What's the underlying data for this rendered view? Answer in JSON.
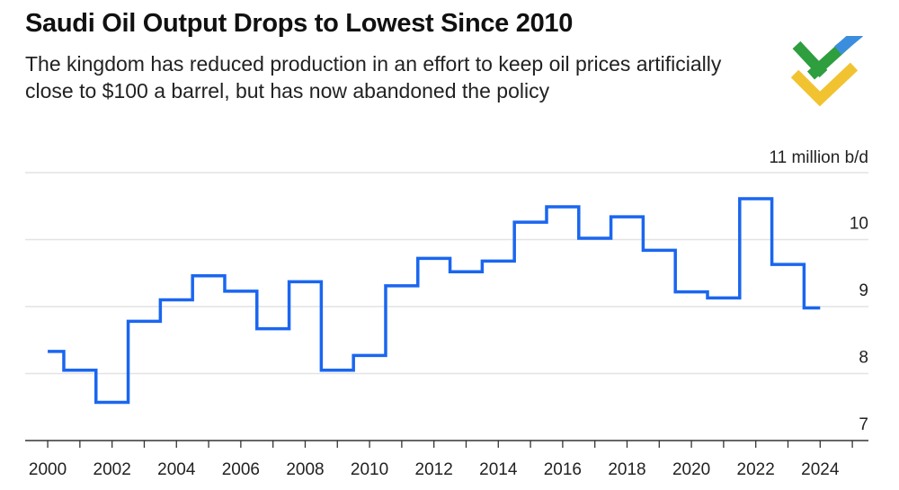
{
  "header": {
    "title": "Saudi Oil Output Drops to Lowest Since 2010",
    "subtitle_line1": "The kingdom has reduced production in an effort to keep oil prices artificially",
    "subtitle_line2": "close to $100 a barrel, but has now abandoned the policy"
  },
  "logo": {
    "icon": "checkmark-logo-icon",
    "colors": [
      "#2e9e3e",
      "#3b8ede",
      "#f2c331"
    ]
  },
  "chart_data": {
    "type": "line",
    "step": true,
    "title": "Saudi Oil Output Drops to Lowest Since 2010",
    "unit_label": "11 million b/d",
    "xlabel": "",
    "ylabel": "",
    "xlim": [
      1999.3,
      2025.5
    ],
    "ylim": [
      7,
      11
    ],
    "yticks": [
      7,
      8,
      9,
      10
    ],
    "xticks": [
      2000,
      2002,
      2004,
      2006,
      2008,
      2010,
      2012,
      2014,
      2016,
      2018,
      2020,
      2022,
      2024
    ],
    "grid": true,
    "line_color": "#1a66f0",
    "series": [
      {
        "name": "",
        "x": [
          2000,
          2001,
          2002,
          2003,
          2004,
          2005,
          2006,
          2007,
          2008,
          2009,
          2010,
          2011,
          2012,
          2013,
          2014,
          2015,
          2016,
          2017,
          2018,
          2019,
          2020,
          2021,
          2022,
          2023,
          2024
        ],
        "values": [
          8.33,
          8.05,
          7.57,
          8.78,
          9.1,
          9.46,
          9.23,
          8.67,
          9.37,
          8.05,
          8.27,
          9.31,
          9.72,
          9.52,
          9.68,
          10.26,
          10.49,
          10.02,
          10.34,
          9.84,
          9.22,
          9.13,
          10.61,
          9.63,
          8.98
        ]
      }
    ]
  }
}
